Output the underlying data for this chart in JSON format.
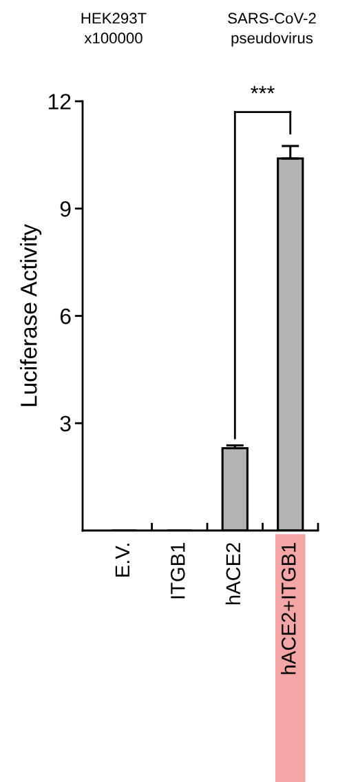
{
  "chart_data": {
    "type": "bar",
    "ylabel": "Luciferase Activity",
    "annotations": [
      "HEK293T\nx100000",
      "SARS-CoV-2\npseudovirus",
      "***"
    ],
    "categories": [
      "E.V.",
      "ITGB1",
      "hACE2",
      "hACE2+ITGB1"
    ],
    "values": [
      0,
      0,
      2.3,
      10.4
    ],
    "errors": [
      null,
      null,
      0.08,
      0.35
    ],
    "color": "#b3b3b3",
    "ylim": [
      0,
      12
    ],
    "yticks": [
      3,
      6,
      9,
      12
    ],
    "grid": false
  }
}
